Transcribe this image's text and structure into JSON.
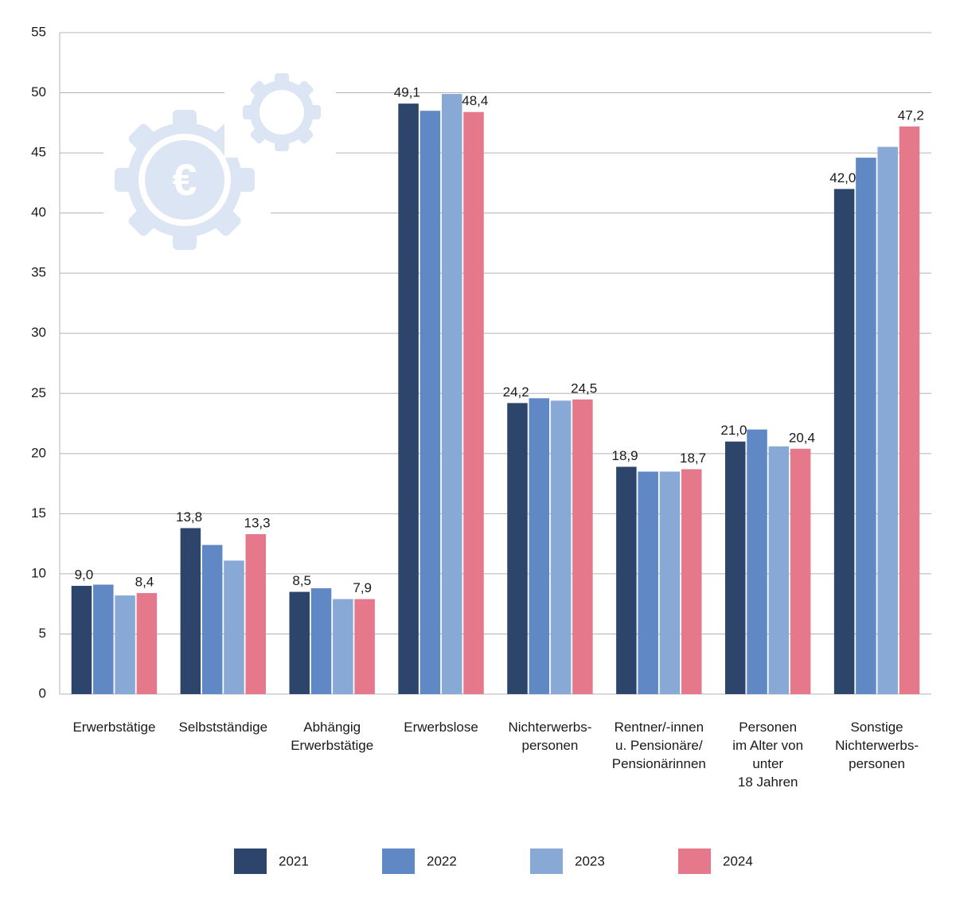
{
  "chart_data": {
    "type": "bar",
    "categories": [
      "Erwerbstätige",
      "Selbstständige",
      "Abhängig\nErwerbstätige",
      "Erwerbslose",
      "Nichterwerbs-\npersonen",
      "Rentner/-innen\nu. Pensionäre/\nPensionärinnen",
      "Personen\nim Alter von\nunter\n18 Jahren",
      "Sonstige\nNichterwerbs-\npersonen"
    ],
    "series": [
      {
        "name": "2021",
        "color": "#2d456b",
        "values": [
          9.0,
          13.8,
          8.5,
          49.1,
          24.2,
          18.9,
          21.0,
          42.0
        ],
        "value_labels": [
          "9,0",
          "13,8",
          "8,5",
          "49,1",
          "24,2",
          "18,9",
          "21,0",
          "42,0"
        ]
      },
      {
        "name": "2022",
        "color": "#5f88c5",
        "values": [
          9.1,
          12.4,
          8.8,
          48.5,
          24.6,
          18.5,
          22.0,
          44.6
        ]
      },
      {
        "name": "2023",
        "color": "#88a8d6",
        "values": [
          8.2,
          11.1,
          7.9,
          49.9,
          24.4,
          18.5,
          20.6,
          45.5
        ]
      },
      {
        "name": "2024",
        "color": "#e6788c",
        "values": [
          8.4,
          13.3,
          7.9,
          48.4,
          24.5,
          18.7,
          20.4,
          47.2
        ],
        "value_labels": [
          "8,4",
          "13,3",
          "7,9",
          "48,4",
          "24,5",
          "18,7",
          "20,4",
          "47,2"
        ]
      }
    ],
    "ylim": [
      0,
      55
    ],
    "yticks": [
      0,
      5,
      10,
      15,
      20,
      25,
      30,
      35,
      40,
      45,
      50,
      55
    ],
    "grid": true,
    "legend": "bottom"
  }
}
